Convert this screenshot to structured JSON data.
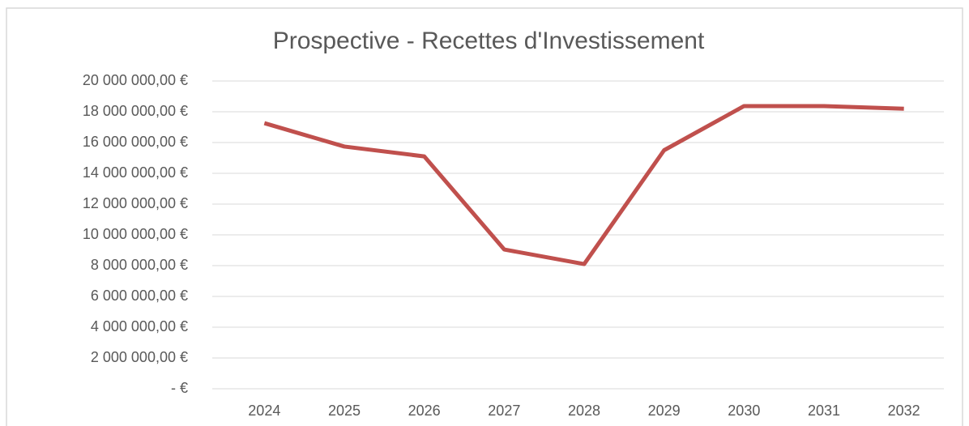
{
  "chart_data": {
    "type": "line",
    "title": "Prospective - Recettes d'Investissement",
    "categories": [
      "2024",
      "2025",
      "2026",
      "2027",
      "2028",
      "2029",
      "2030",
      "2031",
      "2032"
    ],
    "series": [
      {
        "name": "Recettes d'Investissement",
        "color": "#c0504d",
        "values": [
          17260000,
          15740000,
          15100000,
          9050000,
          8100000,
          15500000,
          18370000,
          18370000,
          18200000
        ]
      }
    ],
    "ylim": [
      0,
      20000000
    ],
    "yticks": [
      {
        "value": 0,
        "label": "-   €"
      },
      {
        "value": 2000000,
        "label": "2 000 000,00 €"
      },
      {
        "value": 4000000,
        "label": "4 000 000,00 €"
      },
      {
        "value": 6000000,
        "label": "6 000 000,00 €"
      },
      {
        "value": 8000000,
        "label": "8 000 000,00 €"
      },
      {
        "value": 10000000,
        "label": "10 000 000,00 €"
      },
      {
        "value": 12000000,
        "label": "12 000 000,00 €"
      },
      {
        "value": 14000000,
        "label": "14 000 000,00 €"
      },
      {
        "value": 16000000,
        "label": "16 000 000,00 €"
      },
      {
        "value": 18000000,
        "label": "18 000 000,00 €"
      },
      {
        "value": 20000000,
        "label": "20 000 000,00 €"
      }
    ],
    "grid": true
  }
}
